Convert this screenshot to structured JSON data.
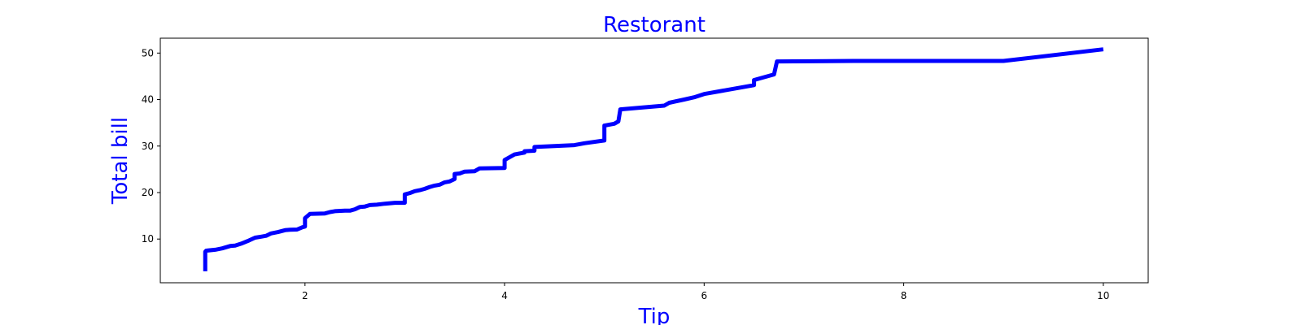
{
  "chart_data": {
    "type": "line",
    "title": "Restorant",
    "xlabel": "Tip",
    "ylabel": "Total bill",
    "xlim": [
      0.55,
      10.45
    ],
    "ylim": [
      0.6,
      53.2
    ],
    "xticks": [
      2,
      4,
      6,
      8,
      10
    ],
    "yticks": [
      10,
      20,
      30,
      40,
      50
    ],
    "grid": false,
    "legend": "none",
    "series": [
      {
        "color": "#0000ff",
        "x": [
          1.0,
          1.0,
          1.01,
          1.1,
          1.17,
          1.25,
          1.3,
          1.36,
          1.44,
          1.5,
          1.56,
          1.61,
          1.66,
          1.73,
          1.8,
          1.85,
          1.92,
          1.97,
          2.0,
          2.0,
          2.05,
          2.2,
          2.25,
          2.3,
          2.4,
          2.45,
          2.5,
          2.55,
          2.6,
          2.65,
          2.72,
          2.8,
          2.9,
          3.0,
          3.0,
          3.05,
          3.1,
          3.15,
          3.2,
          3.25,
          3.3,
          3.35,
          3.4,
          3.45,
          3.5,
          3.5,
          3.55,
          3.6,
          3.7,
          3.75,
          4.0,
          4.0,
          4.05,
          4.1,
          4.2,
          4.2,
          4.3,
          4.3,
          4.5,
          4.7,
          4.8,
          5.0,
          5.0,
          5.1,
          5.14,
          5.16,
          5.6,
          5.65,
          5.8,
          5.9,
          6.0,
          6.5,
          6.5,
          6.7,
          6.73,
          7.5,
          9.0,
          10.0
        ],
        "y": [
          3.07,
          7.25,
          7.5,
          7.7,
          8.0,
          8.5,
          8.6,
          9.0,
          9.7,
          10.3,
          10.5,
          10.7,
          11.2,
          11.5,
          11.9,
          12.0,
          12.05,
          12.5,
          12.7,
          14.5,
          15.4,
          15.5,
          15.8,
          16.0,
          16.1,
          16.1,
          16.4,
          16.9,
          17.0,
          17.3,
          17.4,
          17.6,
          17.8,
          17.8,
          19.6,
          19.9,
          20.3,
          20.5,
          20.8,
          21.2,
          21.5,
          21.7,
          22.2,
          22.4,
          22.9,
          24.0,
          24.1,
          24.5,
          24.6,
          25.2,
          25.3,
          27.0,
          27.6,
          28.2,
          28.6,
          28.9,
          29.0,
          29.8,
          30.0,
          30.2,
          30.6,
          31.2,
          34.4,
          34.8,
          35.3,
          37.9,
          38.7,
          39.3,
          40.0,
          40.5,
          41.2,
          43.1,
          44.2,
          45.4,
          48.2,
          48.3,
          48.3,
          50.8
        ]
      }
    ]
  }
}
